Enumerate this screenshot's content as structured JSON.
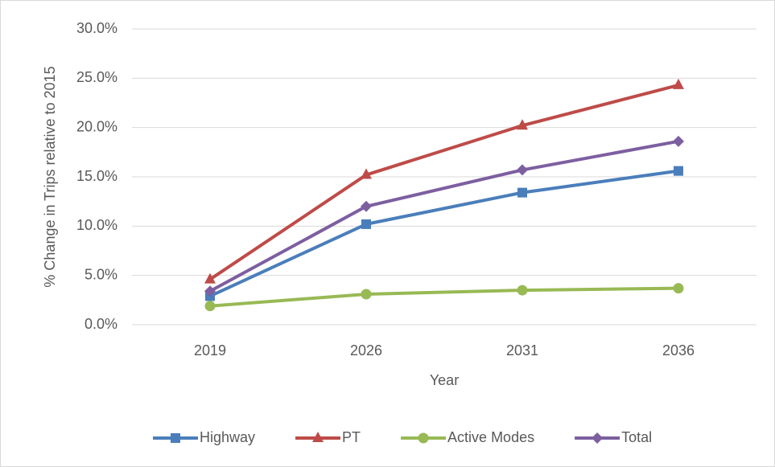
{
  "chart_data": {
    "type": "line",
    "x_label": "Year",
    "y_label": "% Change in Trips relative to 2015",
    "categories": [
      "2019",
      "2026",
      "2031",
      "2036"
    ],
    "series": [
      {
        "name": "Highway",
        "color": "#4a7ebb",
        "marker": "square",
        "values": [
          2.9,
          10.2,
          13.4,
          15.6
        ]
      },
      {
        "name": "PT",
        "color": "#be4b48",
        "marker": "triangle",
        "values": [
          4.6,
          15.2,
          20.2,
          24.3
        ]
      },
      {
        "name": "Active Modes",
        "color": "#98b954",
        "marker": "circle",
        "values": [
          1.9,
          3.1,
          3.5,
          3.7
        ]
      },
      {
        "name": "Total",
        "color": "#7d5fa0",
        "marker": "diamond",
        "values": [
          3.4,
          12.0,
          15.7,
          18.6
        ]
      }
    ],
    "ylim": [
      0,
      30
    ],
    "yticks": [
      {
        "value": 0,
        "label": "0.0%"
      },
      {
        "value": 5,
        "label": "5.0%"
      },
      {
        "value": 10,
        "label": "10.0%"
      },
      {
        "value": 15,
        "label": "15.0%"
      },
      {
        "value": 20,
        "label": "20.0%"
      },
      {
        "value": 25,
        "label": "25.0%"
      },
      {
        "value": 30,
        "label": "30.0%"
      }
    ],
    "grid": true,
    "legend": "bottom"
  }
}
